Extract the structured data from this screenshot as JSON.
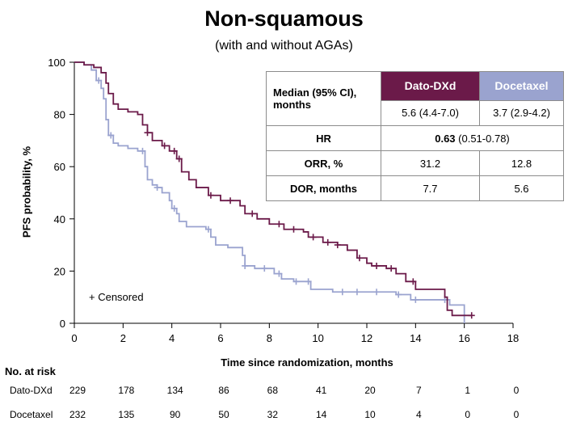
{
  "chart_data": {
    "type": "line",
    "title": "Non-squamous",
    "subtitle": "(with and without AGAs)",
    "xlabel": "Time since randomization, months",
    "ylabel": "PFS probability, %",
    "xlim": [
      0,
      18
    ],
    "ylim": [
      0,
      100
    ],
    "x_ticks": [
      0,
      2,
      4,
      6,
      8,
      10,
      12,
      14,
      16,
      18
    ],
    "y_ticks": [
      0,
      20,
      40,
      60,
      80,
      100
    ],
    "censored_note": "+ Censored",
    "series": [
      {
        "name": "Dato-DXd",
        "color": "#6b1a49",
        "points": [
          [
            0,
            100
          ],
          [
            0.4,
            99
          ],
          [
            0.8,
            98
          ],
          [
            1.1,
            96
          ],
          [
            1.3,
            92
          ],
          [
            1.4,
            88
          ],
          [
            1.6,
            84
          ],
          [
            1.8,
            82
          ],
          [
            2.2,
            81
          ],
          [
            2.6,
            80
          ],
          [
            2.8,
            76
          ],
          [
            3.0,
            73
          ],
          [
            3.2,
            70
          ],
          [
            3.6,
            68
          ],
          [
            3.9,
            66
          ],
          [
            4.2,
            63
          ],
          [
            4.4,
            58
          ],
          [
            4.7,
            55
          ],
          [
            5.0,
            52
          ],
          [
            5.5,
            49
          ],
          [
            6.0,
            47
          ],
          [
            6.8,
            45
          ],
          [
            7.0,
            42
          ],
          [
            7.5,
            40
          ],
          [
            8.0,
            38
          ],
          [
            8.6,
            36
          ],
          [
            9.4,
            35
          ],
          [
            9.6,
            33
          ],
          [
            10.2,
            31
          ],
          [
            10.8,
            30
          ],
          [
            11.2,
            28
          ],
          [
            11.6,
            25
          ],
          [
            12.0,
            23
          ],
          [
            12.2,
            22
          ],
          [
            12.8,
            21
          ],
          [
            13.2,
            19
          ],
          [
            13.6,
            16
          ],
          [
            14.0,
            13
          ],
          [
            15.2,
            10
          ],
          [
            15.3,
            5
          ],
          [
            15.5,
            3
          ],
          [
            16.3,
            3
          ]
        ],
        "censor_x": [
          3.0,
          3.7,
          4.1,
          4.3,
          5.6,
          6.4,
          7.3,
          8.4,
          9.0,
          9.8,
          10.4,
          10.8,
          11.7,
          12.4,
          13.0,
          13.9,
          16.3
        ]
      },
      {
        "name": "Docetaxel",
        "color": "#9aa3cf",
        "points": [
          [
            0,
            100
          ],
          [
            0.4,
            99
          ],
          [
            0.7,
            97
          ],
          [
            0.9,
            93
          ],
          [
            1.1,
            90
          ],
          [
            1.2,
            86
          ],
          [
            1.3,
            78
          ],
          [
            1.4,
            72
          ],
          [
            1.6,
            69
          ],
          [
            1.8,
            68
          ],
          [
            2.2,
            67
          ],
          [
            2.6,
            66
          ],
          [
            2.9,
            60
          ],
          [
            3.0,
            55
          ],
          [
            3.2,
            53
          ],
          [
            3.4,
            52
          ],
          [
            3.6,
            50
          ],
          [
            3.9,
            47
          ],
          [
            4.0,
            44
          ],
          [
            4.2,
            42
          ],
          [
            4.3,
            39
          ],
          [
            4.6,
            37
          ],
          [
            5.4,
            36
          ],
          [
            5.6,
            33
          ],
          [
            5.8,
            30
          ],
          [
            6.3,
            29
          ],
          [
            6.9,
            26
          ],
          [
            7.0,
            22
          ],
          [
            7.4,
            21
          ],
          [
            8.2,
            19
          ],
          [
            8.5,
            17
          ],
          [
            9.0,
            16
          ],
          [
            9.7,
            13
          ],
          [
            10.6,
            12
          ],
          [
            13.2,
            11
          ],
          [
            13.8,
            9
          ],
          [
            15.0,
            9
          ],
          [
            15.4,
            7
          ],
          [
            16.0,
            7
          ],
          [
            16.0,
            0
          ]
        ],
        "censor_x": [
          1.0,
          1.5,
          2.8,
          3.4,
          4.1,
          5.5,
          7.0,
          7.8,
          8.4,
          9.1,
          9.6,
          11.0,
          11.6,
          12.4,
          13.3,
          14.0,
          15.2
        ]
      }
    ]
  },
  "stats_table": {
    "header_label": "Median (95% CI), months",
    "dato_label": "Dato-DXd",
    "doce_label": "Docetaxel",
    "median_dato": "5.6 (4.4-7.0)",
    "median_doce": "3.7 (2.9-4.2)",
    "hr_label": "HR",
    "hr_value": "0.63",
    "hr_ci": " (0.51-0.78)",
    "orr_label": "ORR, %",
    "orr_dato": "31.2",
    "orr_doce": "12.8",
    "dor_label": "DOR, months",
    "dor_dato": "7.7",
    "dor_doce": "5.6"
  },
  "risk_table": {
    "title": "No. at risk",
    "rows": [
      {
        "label": "Dato-DXd",
        "values": [
          "229",
          "178",
          "134",
          "86",
          "68",
          "41",
          "20",
          "7",
          "1",
          "0"
        ]
      },
      {
        "label": "Docetaxel",
        "values": [
          "232",
          "135",
          "90",
          "50",
          "32",
          "14",
          "10",
          "4",
          "0",
          "0"
        ]
      }
    ]
  }
}
